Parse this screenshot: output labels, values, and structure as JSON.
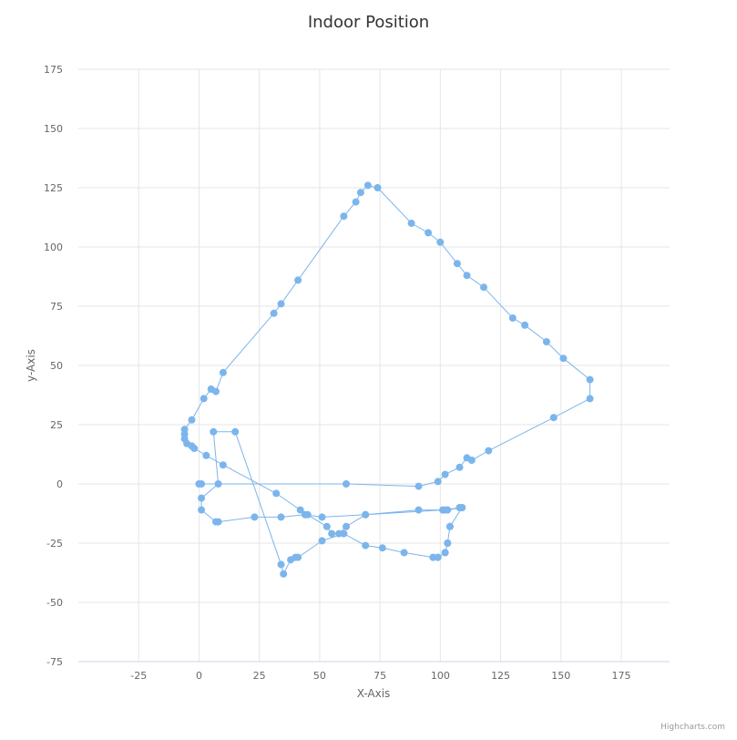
{
  "chart_data": {
    "type": "line",
    "title": "Indoor Position",
    "xlabel": "X-Axis",
    "ylabel": "y-Axis",
    "xlim": [
      -50,
      195
    ],
    "ylim": [
      -75,
      175
    ],
    "x_ticks": [
      -25,
      0,
      25,
      50,
      75,
      100,
      125,
      150,
      175
    ],
    "y_ticks": [
      -75,
      -50,
      -25,
      0,
      25,
      50,
      75,
      100,
      125,
      150,
      175
    ],
    "grid": true,
    "legend": "none",
    "color": "#7cb5ec",
    "series": [
      {
        "points": [
          [
            0,
            0
          ],
          [
            1,
            0
          ],
          [
            61,
            0
          ],
          [
            91,
            -1
          ],
          [
            99,
            1
          ],
          [
            102,
            4
          ],
          [
            108,
            7
          ],
          [
            111,
            11
          ],
          [
            113,
            10
          ],
          [
            120,
            14
          ],
          [
            147,
            28
          ],
          [
            162,
            36
          ],
          [
            162,
            44
          ],
          [
            151,
            53
          ],
          [
            144,
            60
          ],
          [
            135,
            67
          ],
          [
            130,
            70
          ],
          [
            118,
            83
          ],
          [
            111,
            88
          ],
          [
            107,
            93
          ],
          [
            100,
            102
          ],
          [
            95,
            106
          ],
          [
            88,
            110
          ],
          [
            74,
            125
          ],
          [
            70,
            126
          ],
          [
            67,
            123
          ],
          [
            65,
            119
          ],
          [
            60,
            113
          ],
          [
            41,
            86
          ],
          [
            34,
            76
          ],
          [
            31,
            72
          ],
          [
            10,
            47
          ],
          [
            7,
            39
          ],
          [
            5,
            40
          ],
          [
            2,
            36
          ],
          [
            -3,
            27
          ],
          [
            -6,
            23
          ],
          [
            -6,
            21
          ],
          [
            -6,
            19
          ],
          [
            -5,
            17
          ],
          [
            -3,
            16
          ],
          [
            -2,
            15
          ],
          [
            3,
            12
          ],
          [
            10,
            8
          ],
          [
            32,
            -4
          ],
          [
            42,
            -11
          ],
          [
            45,
            -13
          ],
          [
            53,
            -18
          ],
          [
            55,
            -21
          ],
          [
            58,
            -21
          ],
          [
            61,
            -18
          ],
          [
            69,
            -13
          ],
          [
            91,
            -11
          ],
          [
            102,
            -11
          ],
          [
            108,
            -10
          ],
          [
            109,
            -10
          ],
          [
            104,
            -18
          ],
          [
            103,
            -25
          ],
          [
            102,
            -29
          ],
          [
            99,
            -31
          ],
          [
            97,
            -31
          ],
          [
            85,
            -29
          ],
          [
            76,
            -27
          ],
          [
            69,
            -26
          ],
          [
            60,
            -21
          ],
          [
            51,
            -24
          ],
          [
            41,
            -31
          ],
          [
            40,
            -31
          ],
          [
            38,
            -32
          ],
          [
            35,
            -38
          ],
          [
            34,
            -34
          ],
          [
            15,
            22
          ],
          [
            6,
            22
          ],
          [
            8,
            0
          ],
          [
            1,
            -6
          ],
          [
            1,
            -11
          ],
          [
            7,
            -16
          ],
          [
            8,
            -16
          ],
          [
            23,
            -14
          ],
          [
            34,
            -14
          ],
          [
            44,
            -13
          ],
          [
            51,
            -14
          ],
          [
            69,
            -13
          ],
          [
            101,
            -11
          ],
          [
            103,
            -11
          ],
          [
            109,
            -10
          ],
          [
            104,
            -18
          ],
          [
            103,
            -25
          ],
          [
            102,
            -29
          ],
          [
            99,
            -31
          ],
          [
            97,
            -31
          ]
        ]
      }
    ]
  },
  "credits": "Highcharts.com"
}
